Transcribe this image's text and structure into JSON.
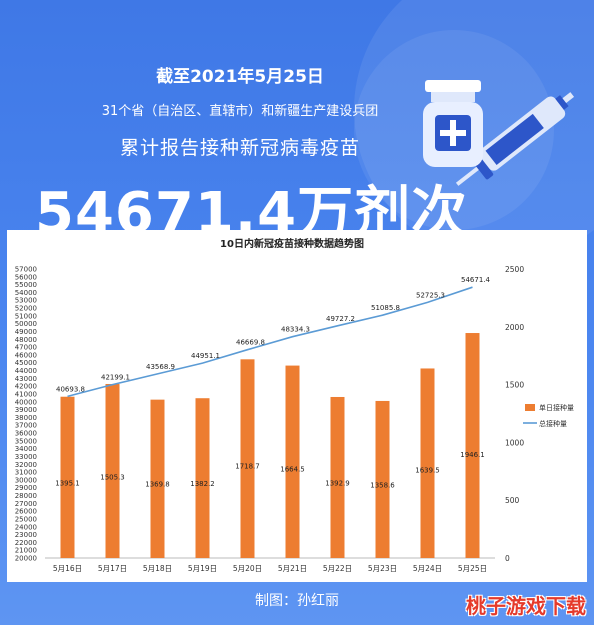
{
  "header": {
    "date_line": "截至2021年5月25日",
    "region_line": "31个省（自治区、直辖市）和新疆生产建设兵团",
    "subtitle": "累计报告接种新冠病毒疫苗",
    "big_number": "54671.4万剂次"
  },
  "footer": {
    "credit": "制图：孙红丽"
  },
  "watermark": "桃子游戏下载",
  "colors": {
    "background": "#4a84ee",
    "bar": "#ed7d31",
    "line": "#5b9bd5"
  },
  "chart_data": {
    "type": "bar",
    "title": "10日内新冠疫苗接种数据趋势图",
    "categories": [
      "5月16日",
      "5月17日",
      "5月18日",
      "5月19日",
      "5月20日",
      "5月21日",
      "5月22日",
      "5月23日",
      "5月24日",
      "5月25日"
    ],
    "series": [
      {
        "name": "单日接种量",
        "type": "bar",
        "axis": "right",
        "values": [
          1395.1,
          1505.3,
          1369.8,
          1382.2,
          1718.7,
          1664.5,
          1392.9,
          1358.6,
          1639.5,
          1946.1
        ]
      },
      {
        "name": "总接种量",
        "type": "line",
        "axis": "left",
        "values": [
          40693.8,
          42199.1,
          43568.9,
          44951.1,
          46669.8,
          48334.3,
          49727.2,
          51085.8,
          52725.3,
          54671.4
        ]
      }
    ],
    "ylim_left": [
      20000,
      57000
    ],
    "ylim_right": [
      0,
      2500
    ],
    "left_ticks": [
      20000,
      21000,
      22000,
      23000,
      24000,
      25000,
      26000,
      27000,
      28000,
      29000,
      30000,
      31000,
      32000,
      33000,
      34000,
      35000,
      36000,
      37000,
      38000,
      39000,
      40000,
      41000,
      42000,
      43000,
      44000,
      45000,
      46000,
      47000,
      48000,
      49000,
      50000,
      51000,
      52000,
      53000,
      54000,
      55000,
      56000,
      57000
    ],
    "right_ticks": [
      0,
      500,
      1000,
      1500,
      2000,
      2500
    ],
    "legend_position": "right"
  }
}
